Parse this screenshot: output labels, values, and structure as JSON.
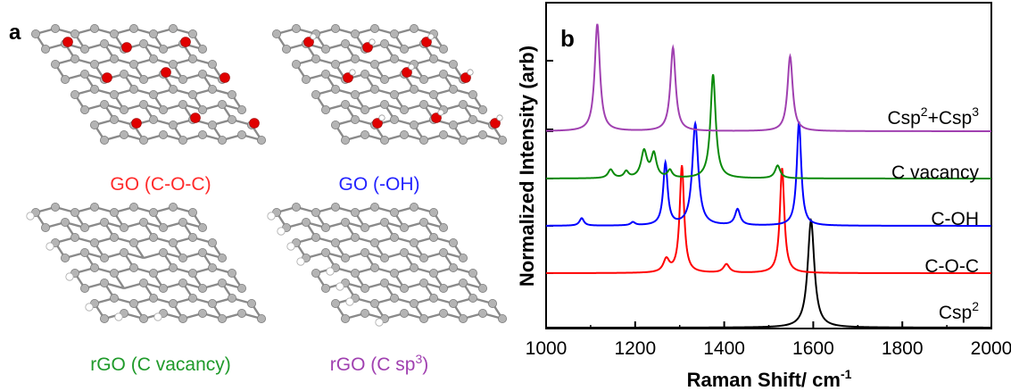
{
  "panel_a": {
    "label": "a",
    "structures": [
      {
        "caption": "GO (C-O-C)",
        "color": "#ff2a2a",
        "oxygen": "#e00000",
        "hydrogen": ""
      },
      {
        "caption": "GO (-OH)",
        "color": "#2323ff",
        "oxygen": "#e00000",
        "hydrogen": "#ffffff"
      },
      {
        "caption": "rGO (C vacancy)",
        "color": "#1f9a2a",
        "oxygen": "",
        "hydrogen": "#ffffff"
      },
      {
        "caption": "rGO (C sp",
        "caption_sup": "3",
        "caption_end": ")",
        "color": "#a040b0",
        "oxygen": "",
        "hydrogen": "#ffffff"
      }
    ]
  },
  "chart_data": {
    "type": "line",
    "panel_label": "b",
    "xlabel": "Raman Shift/ cm",
    "xlabel_sup": "-1",
    "ylabel": "Normalized Intensity (arb)",
    "xlim": [
      1000,
      2000
    ],
    "x_ticks": [
      "1000",
      "1200",
      "1400",
      "1600",
      "1800",
      "2000"
    ],
    "grid": false,
    "series": [
      {
        "name": "Csp",
        "name_sup": "2",
        "name_end": "",
        "color": "#000000",
        "offset": 0,
        "peaks": [
          [
            1595,
            1.0,
            9
          ]
        ]
      },
      {
        "name": "C-O-C",
        "name_sup": "",
        "name_end": "",
        "color": "#ff0000",
        "offset": 0.5,
        "peaks": [
          [
            1305,
            1.0,
            6
          ],
          [
            1270,
            0.12,
            8
          ],
          [
            1405,
            0.08,
            8
          ],
          [
            1530,
            0.98,
            6
          ]
        ]
      },
      {
        "name": "C-OH",
        "name_sup": "",
        "name_end": "",
        "color": "#0000ff",
        "offset": 1.0,
        "peaks": [
          [
            1080,
            0.07,
            6
          ],
          [
            1195,
            0.03,
            6
          ],
          [
            1268,
            0.58,
            6
          ],
          [
            1335,
            0.95,
            8
          ],
          [
            1430,
            0.15,
            7
          ],
          [
            1568,
            0.97,
            6
          ]
        ]
      },
      {
        "name": "C vacancy",
        "name_sup": "",
        "name_end": "",
        "color": "#0a8a0a",
        "offset": 1.5,
        "peaks": [
          [
            1145,
            0.08,
            7
          ],
          [
            1180,
            0.06,
            6
          ],
          [
            1220,
            0.25,
            8
          ],
          [
            1242,
            0.22,
            7
          ],
          [
            1278,
            0.07,
            6
          ],
          [
            1375,
            0.97,
            7
          ],
          [
            1520,
            0.12,
            7
          ]
        ]
      },
      {
        "name": "Csp",
        "name_sup": "2",
        "name_end": "+Csp",
        "name_sup2": "3",
        "color": "#a040b0",
        "offset": 2.0,
        "peaks": [
          [
            1115,
            1.0,
            7
          ],
          [
            1285,
            0.78,
            7
          ],
          [
            1548,
            0.7,
            7
          ]
        ]
      }
    ]
  }
}
